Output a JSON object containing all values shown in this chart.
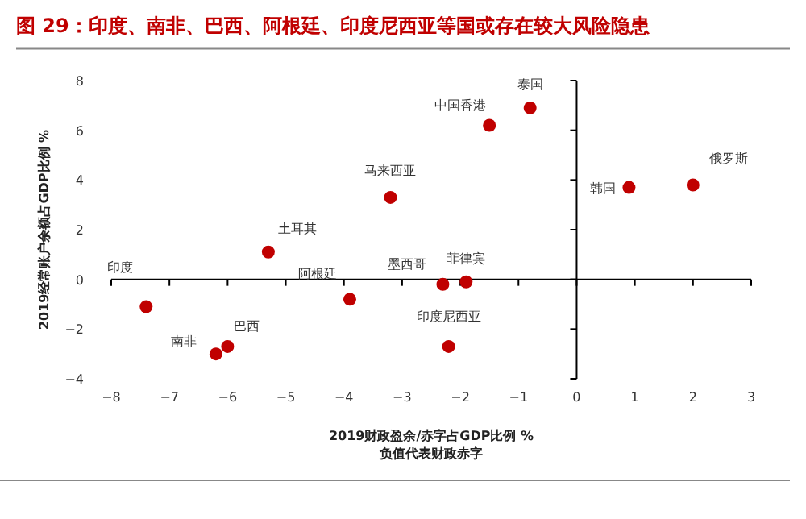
{
  "chart_data": {
    "type": "scatter",
    "title": "图 29：印度、南非、巴西、阿根廷、印度尼西亚等国或存在较大风险隐患",
    "xlabel": "2019财政盈余/赤字占GDP比例 %\n负值代表财政赤字",
    "ylabel": "2019经常账户余额占GDP比例 %",
    "x": [
      -7.4,
      -6.2,
      -6.0,
      -5.3,
      -3.9,
      -3.2,
      -2.3,
      -1.9,
      -2.2,
      -1.5,
      -0.8,
      0.9,
      2.0
    ],
    "values": [
      -1.1,
      -3.0,
      -2.7,
      1.1,
      -0.8,
      3.3,
      -0.2,
      -0.1,
      -2.7,
      6.2,
      6.9,
      3.7,
      3.8
    ],
    "color": "#c00000",
    "marker": "circle",
    "xlim": [
      -8,
      3
    ],
    "ylim": [
      -4,
      8
    ],
    "xticks": [
      -8,
      -7,
      -6,
      -5,
      -4,
      -3,
      -2,
      -1,
      0,
      1,
      2,
      3
    ],
    "yticks": [
      -4,
      -2,
      0,
      2,
      4,
      6,
      8
    ],
    "annotations": [
      {
        "text": "印度",
        "x": -7.4,
        "y": -1.1
      },
      {
        "text": "南非",
        "x": -6.2,
        "y": -3.0
      },
      {
        "text": "巴西",
        "x": -6.0,
        "y": -2.7
      },
      {
        "text": "土耳其",
        "x": -5.3,
        "y": 1.1
      },
      {
        "text": "阿根廷",
        "x": -3.9,
        "y": -0.8
      },
      {
        "text": "马来西亚",
        "x": -3.2,
        "y": 3.3
      },
      {
        "text": "墨西哥",
        "x": -2.3,
        "y": -0.2
      },
      {
        "text": "菲律宾",
        "x": -1.9,
        "y": -0.1
      },
      {
        "text": "印度尼西亚",
        "x": -2.2,
        "y": -2.7
      },
      {
        "text": "中国香港",
        "x": -1.5,
        "y": 6.2
      },
      {
        "text": "泰国",
        "x": -0.8,
        "y": 6.9
      },
      {
        "text": "韩国",
        "x": 0.9,
        "y": 3.7
      },
      {
        "text": "俄罗斯",
        "x": 2.0,
        "y": 3.8
      }
    ]
  }
}
